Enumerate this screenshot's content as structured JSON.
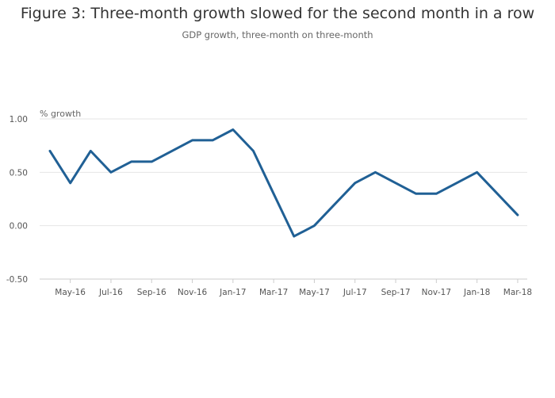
{
  "chart_data": {
    "type": "line",
    "title": "Figure 3: Three-month growth slowed for the second month in a row",
    "subtitle": "GDP growth, three-month on three-month",
    "xlabel": "",
    "ylabel": "% growth",
    "ylim": [
      -0.5,
      1.0
    ],
    "y_ticks": [
      "1.00",
      "0.50",
      "0.00",
      "-0.50"
    ],
    "y_tick_values": [
      1.0,
      0.5,
      0.0,
      -0.5
    ],
    "x": [
      "Apr-16",
      "May-16",
      "Jun-16",
      "Jul-16",
      "Aug-16",
      "Sep-16",
      "Oct-16",
      "Nov-16",
      "Dec-16",
      "Jan-17",
      "Feb-17",
      "Mar-17",
      "Apr-17",
      "May-17",
      "Jun-17",
      "Jul-17",
      "Aug-17",
      "Sep-17",
      "Oct-17",
      "Nov-17",
      "Dec-17",
      "Jan-18",
      "Feb-18",
      "Mar-18"
    ],
    "x_tick_labels": [
      "May-16",
      "Jul-16",
      "Sep-16",
      "Nov-16",
      "Jan-17",
      "Mar-17",
      "May-17",
      "Jul-17",
      "Sep-17",
      "Nov-17",
      "Jan-18",
      "Mar-18"
    ],
    "series": [
      {
        "values": [
          0.7,
          0.4,
          0.7,
          0.5,
          0.6,
          0.6,
          0.7,
          0.8,
          0.8,
          0.9,
          0.7,
          0.3,
          -0.1,
          0.0,
          0.2,
          0.4,
          0.5,
          0.4,
          0.3,
          0.3,
          0.4,
          0.5,
          0.3,
          0.1
        ],
        "color": "#206095"
      }
    ],
    "grid": true,
    "legend": "none"
  }
}
